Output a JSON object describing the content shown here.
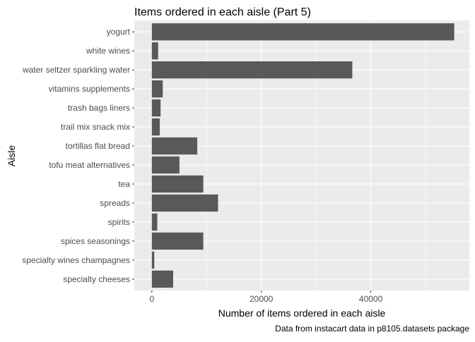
{
  "chart_data": {
    "type": "bar",
    "orientation": "horizontal",
    "title": "Items ordered in each aisle (Part 5)",
    "xlabel": "Number of items ordered in each aisle",
    "ylabel": "Aisle",
    "caption": "Data from instacart data in p8105.datasets package",
    "categories": [
      "yogurt",
      "white wines",
      "water seltzer sparkling water",
      "vitamins supplements",
      "trash bags liners",
      "trail mix snack mix",
      "tortillas flat bread",
      "tofu meat alternatives",
      "tea",
      "spreads",
      "spirits",
      "spices seasonings",
      "specialty wines champagnes",
      "specialty cheeses"
    ],
    "values": [
      55240,
      1150,
      36617,
      2000,
      1600,
      1450,
      8300,
      5050,
      9400,
      12100,
      1000,
      9400,
      450,
      3900
    ],
    "xlim": [
      -3200,
      58000
    ],
    "xticks": [
      0,
      20000,
      40000
    ],
    "xtick_labels": [
      "0",
      "20000",
      "40000"
    ],
    "grid": true,
    "legend": "none",
    "colors": {
      "bar": "#595959",
      "panel": "#ebebeb",
      "grid_major": "#ffffff",
      "text": "#000000",
      "tick_text": "#4d4d4d",
      "tick_mark": "#333333"
    }
  }
}
